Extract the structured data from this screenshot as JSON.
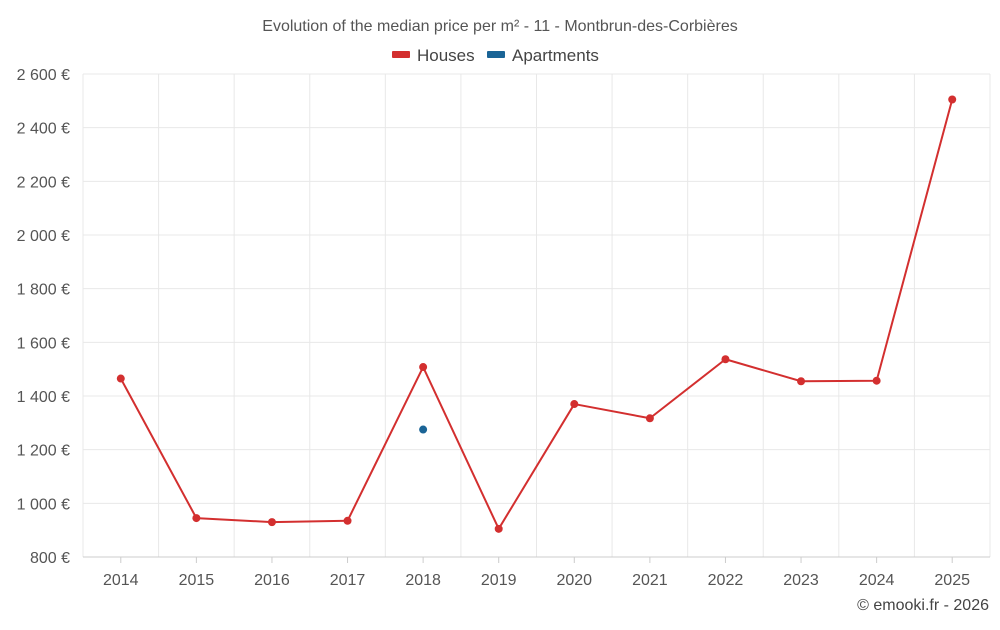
{
  "chart_data": {
    "type": "line",
    "title": "Evolution of the median price per m² - 11 - Montbrun-des-Corbières",
    "xlabel": "",
    "ylabel": "",
    "categories": [
      "2014",
      "2015",
      "2016",
      "2017",
      "2018",
      "2019",
      "2020",
      "2021",
      "2022",
      "2023",
      "2024",
      "2025"
    ],
    "ylim": [
      800,
      2600
    ],
    "yticks": [
      800,
      1000,
      1200,
      1400,
      1600,
      1800,
      2000,
      2200,
      2400,
      2600
    ],
    "ytick_labels": [
      "800 €",
      "1 000 €",
      "1 200 €",
      "1 400 €",
      "1 600 €",
      "1 800 €",
      "2 000 €",
      "2 200 €",
      "2 400 €",
      "2 600 €"
    ],
    "grid": true,
    "legend_position": "top-center",
    "series": [
      {
        "name": "Houses",
        "color": "#d32f2f",
        "values": [
          1465,
          945,
          930,
          935,
          1508,
          905,
          1370,
          1317,
          1537,
          1455,
          1457,
          2505
        ]
      },
      {
        "name": "Apartments",
        "color": "#1a6496",
        "values": [
          null,
          null,
          null,
          null,
          1275,
          null,
          null,
          null,
          null,
          null,
          null,
          null
        ]
      }
    ]
  },
  "credit": "© emooki.fr - 2026"
}
